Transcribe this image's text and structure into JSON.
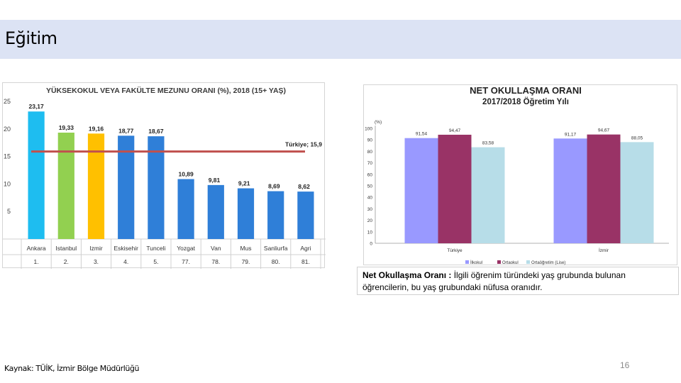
{
  "page": {
    "title": "Eğitim",
    "source": "Kaynak: TÜİK, İzmir Bölge Müdürlüğü",
    "page_number": "16"
  },
  "definition": {
    "term": "Net Okullaşma Oranı :",
    "text": " İlgili öğrenim türündeki yaş grubunda bulunan öğrencilerin, bu yaş grubundaki nüfusa oranıdır."
  },
  "chart_data": [
    {
      "type": "bar",
      "title": "YÜKSEKOKUL VEYA FAKÜLTE MEZUNU ORANI (%), 2018 (15+ YAŞ)",
      "categories": [
        "Ankara",
        "Istanbul",
        "Izmir",
        "Eskisehir",
        "Tunceli",
        "Yozgat",
        "Van",
        "Mus",
        "Sanliurfa",
        "Agri"
      ],
      "ranks": [
        "1.",
        "2.",
        "3.",
        "4.",
        "5.",
        "77.",
        "78.",
        "79.",
        "80.",
        "81."
      ],
      "values": [
        23.17,
        19.33,
        19.16,
        18.77,
        18.67,
        10.89,
        9.81,
        9.21,
        8.69,
        8.62
      ],
      "value_labels": [
        "23,17",
        "19,33",
        "19,16",
        "18,77",
        "18,67",
        "10,89",
        "9,81",
        "9,21",
        "8,69",
        "8,62"
      ],
      "colors": [
        "#1ebdf0",
        "#92d050",
        "#ffc000",
        "#2f7fd8",
        "#2f7fd8",
        "#2f7fd8",
        "#2f7fd8",
        "#2f7fd8",
        "#2f7fd8",
        "#2f7fd8"
      ],
      "reference_line": {
        "value": 15.9,
        "label": "Türkiye; 15,9",
        "color": "#c0504d"
      },
      "ylim": [
        0,
        25
      ],
      "yticks": [
        5,
        10,
        15,
        20,
        25
      ],
      "grid": false
    },
    {
      "type": "bar",
      "title": "NET OKULLAŞMA ORANI",
      "subtitle": "2017/2018 Öğretim Yılı",
      "ylabel": "(%)",
      "categories": [
        "Türkiye",
        "İzmir"
      ],
      "series": [
        {
          "name": "İlkokul",
          "values": [
            91.54,
            91.17
          ],
          "labels": [
            "91,54",
            "91,17"
          ],
          "color": "#9999ff"
        },
        {
          "name": "Ortaokul",
          "values": [
            94.47,
            94.67
          ],
          "labels": [
            "94,47",
            "94,67"
          ],
          "color": "#993366"
        },
        {
          "name": "Ortaöğretim (Lise)",
          "values": [
            83.58,
            88.05
          ],
          "labels": [
            "83,58",
            "88,05"
          ],
          "color": "#b7dde8"
        }
      ],
      "ylim": [
        0,
        100
      ],
      "yticks": [
        0,
        10,
        20,
        30,
        40,
        50,
        60,
        70,
        80,
        90,
        100
      ],
      "legend": "bottom",
      "grid": false
    }
  ]
}
